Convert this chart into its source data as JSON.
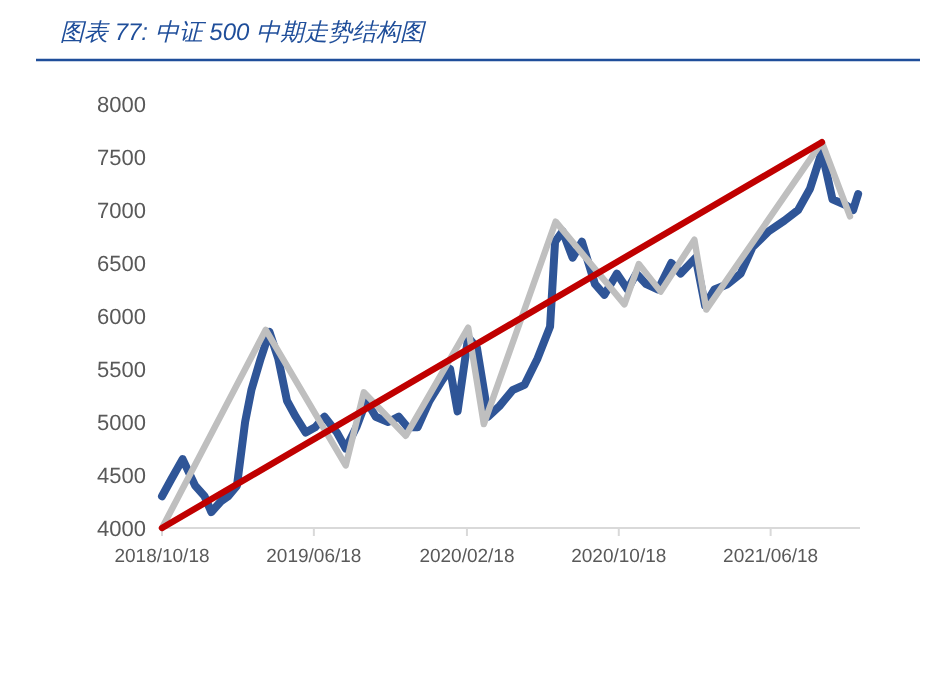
{
  "chart_data": {
    "type": "line",
    "title": "图表 77:  中证 500 中期走势结构图",
    "xlim": [
      "2018-10-18",
      "2021-11-08"
    ],
    "xticks": [
      {
        "value": "2018-10-18",
        "label": "2018/10/18"
      },
      {
        "value": "2019-06-18",
        "label": "2019/06/18"
      },
      {
        "value": "2020-02-18",
        "label": "2020/02/18"
      },
      {
        "value": "2020-10-18",
        "label": "2020/10/18"
      },
      {
        "value": "2021-06-18",
        "label": "2021/06/18"
      }
    ],
    "ylim": [
      4000,
      8000
    ],
    "yticks": [
      4000,
      4500,
      5000,
      5500,
      6000,
      6500,
      7000,
      7500,
      8000
    ],
    "grid": false,
    "marker": "none",
    "line_style": "solid",
    "series": [
      {
        "color": "#2f5597",
        "x": [
          "2018-10-18",
          "2018-11-01",
          "2018-11-20",
          "2018-12-10",
          "2018-12-25",
          "2019-01-05",
          "2019-01-20",
          "2019-02-01",
          "2019-02-15",
          "2019-02-28",
          "2019-03-10",
          "2019-03-25",
          "2019-04-08",
          "2019-04-22",
          "2019-05-06",
          "2019-05-20",
          "2019-06-05",
          "2019-06-20",
          "2019-07-05",
          "2019-07-25",
          "2019-08-08",
          "2019-08-25",
          "2019-09-10",
          "2019-09-25",
          "2019-10-15",
          "2019-11-01",
          "2019-11-15",
          "2019-12-01",
          "2019-12-20",
          "2020-01-10",
          "2020-01-22",
          "2020-02-03",
          "2020-02-20",
          "2020-03-05",
          "2020-03-23",
          "2020-04-10",
          "2020-05-01",
          "2020-05-20",
          "2020-06-10",
          "2020-06-30",
          "2020-07-08",
          "2020-07-20",
          "2020-08-05",
          "2020-08-20",
          "2020-09-10",
          "2020-09-25",
          "2020-10-15",
          "2020-11-01",
          "2020-11-15",
          "2020-12-01",
          "2020-12-20",
          "2021-01-10",
          "2021-01-25",
          "2021-02-18",
          "2021-03-05",
          "2021-03-20",
          "2021-04-10",
          "2021-05-01",
          "2021-05-20",
          "2021-06-15",
          "2021-07-10",
          "2021-08-01",
          "2021-08-20",
          "2021-09-08",
          "2021-09-25",
          "2021-10-15",
          "2021-10-28",
          "2021-11-05"
        ],
        "values": [
          4300,
          4450,
          4650,
          4400,
          4300,
          4150,
          4250,
          4300,
          4400,
          5000,
          5300,
          5600,
          5850,
          5600,
          5200,
          5050,
          4900,
          4950,
          5050,
          4900,
          4750,
          4950,
          5200,
          5050,
          5000,
          5050,
          4950,
          4950,
          5200,
          5400,
          5500,
          5100,
          5800,
          5700,
          5050,
          5150,
          5300,
          5350,
          5600,
          5900,
          6700,
          6800,
          6550,
          6700,
          6300,
          6200,
          6400,
          6250,
          6400,
          6300,
          6250,
          6500,
          6400,
          6550,
          6100,
          6250,
          6300,
          6400,
          6650,
          6800,
          6900,
          7000,
          7200,
          7550,
          7100,
          7050,
          7000,
          7150
        ]
      },
      {
        "color": "#bfbfbf",
        "x": [
          "2018-10-18",
          "2019-04-02",
          "2019-08-08",
          "2019-09-06",
          "2019-11-12",
          "2020-02-20",
          "2020-03-16",
          "2020-07-09",
          "2020-10-27",
          "2020-11-19",
          "2020-12-24",
          "2021-02-16",
          "2021-03-07",
          "2021-09-08",
          "2021-10-23"
        ],
        "values": [
          4000,
          5870,
          4590,
          5280,
          4870,
          5890,
          4980,
          6890,
          6110,
          6490,
          6230,
          6720,
          6060,
          7640,
          6940
        ]
      },
      {
        "color": "#c00000",
        "x": [
          "2018-10-18",
          "2021-09-08"
        ],
        "values": [
          4000,
          7640
        ]
      }
    ]
  }
}
